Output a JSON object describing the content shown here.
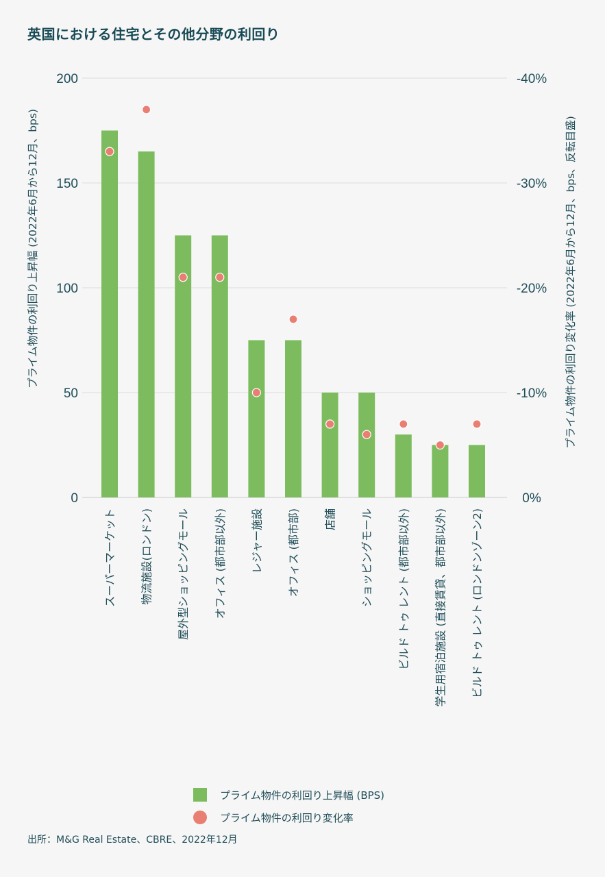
{
  "title": "英国における住宅とその他分野の利回り",
  "source": "出所：M&G Real Estate、CBRE、2022年12月",
  "legend": {
    "bars": "プライム物件の利回り上昇幅 (BPS)",
    "dots": "プライム物件の利回り変化率"
  },
  "colors": {
    "bar": "#7cbc5f",
    "dot": "#e97f73",
    "text": "#1f4d58",
    "grid": "#dcdcdc"
  },
  "chart_data": {
    "type": "bar",
    "categories": [
      "スーパーマーケット",
      "物流施設(ロンドン)",
      "屋外型ショッピングモール",
      "オフィス (都市部以外)",
      "レジャー施設",
      "オフィス (都市部)",
      "店舗",
      "ショッピングモール",
      "ビルド トゥ レント (都市部以外)",
      "学生用宿泊施設 (直接賃貸、都市部以外)",
      "ビルド トゥ レント (ロンドンゾーン2)"
    ],
    "series": [
      {
        "name": "プライム物件の利回り上昇幅 (BPS)",
        "axis": "left",
        "values": [
          175,
          165,
          125,
          125,
          75,
          75,
          50,
          50,
          30,
          25,
          25
        ]
      },
      {
        "name": "プライム物件の利回り変化率",
        "axis": "right",
        "values": [
          -33,
          -37,
          -21,
          -21,
          -10,
          -17,
          -7,
          -6,
          -7,
          -5,
          -7
        ]
      }
    ],
    "ylabel": "プライム物件の利回り上昇幅 (2022年6月から12月、bps)",
    "y2label": "プライム物件の利回り変化率 (2022年6月から12月、bps、反転目盛)",
    "ylim": [
      0,
      200
    ],
    "yticks": [
      0,
      50,
      100,
      150,
      200
    ],
    "y2lim": [
      0,
      -40
    ],
    "y2ticks": [
      {
        "value": 0,
        "label": "0%"
      },
      {
        "value": -10,
        "label": "-10%"
      },
      {
        "value": -20,
        "label": "-20%"
      },
      {
        "value": -30,
        "label": "-30%"
      },
      {
        "value": -40,
        "label": "-40%"
      }
    ],
    "y2_inverted": true,
    "grid": true,
    "legend_position": "bottom"
  }
}
